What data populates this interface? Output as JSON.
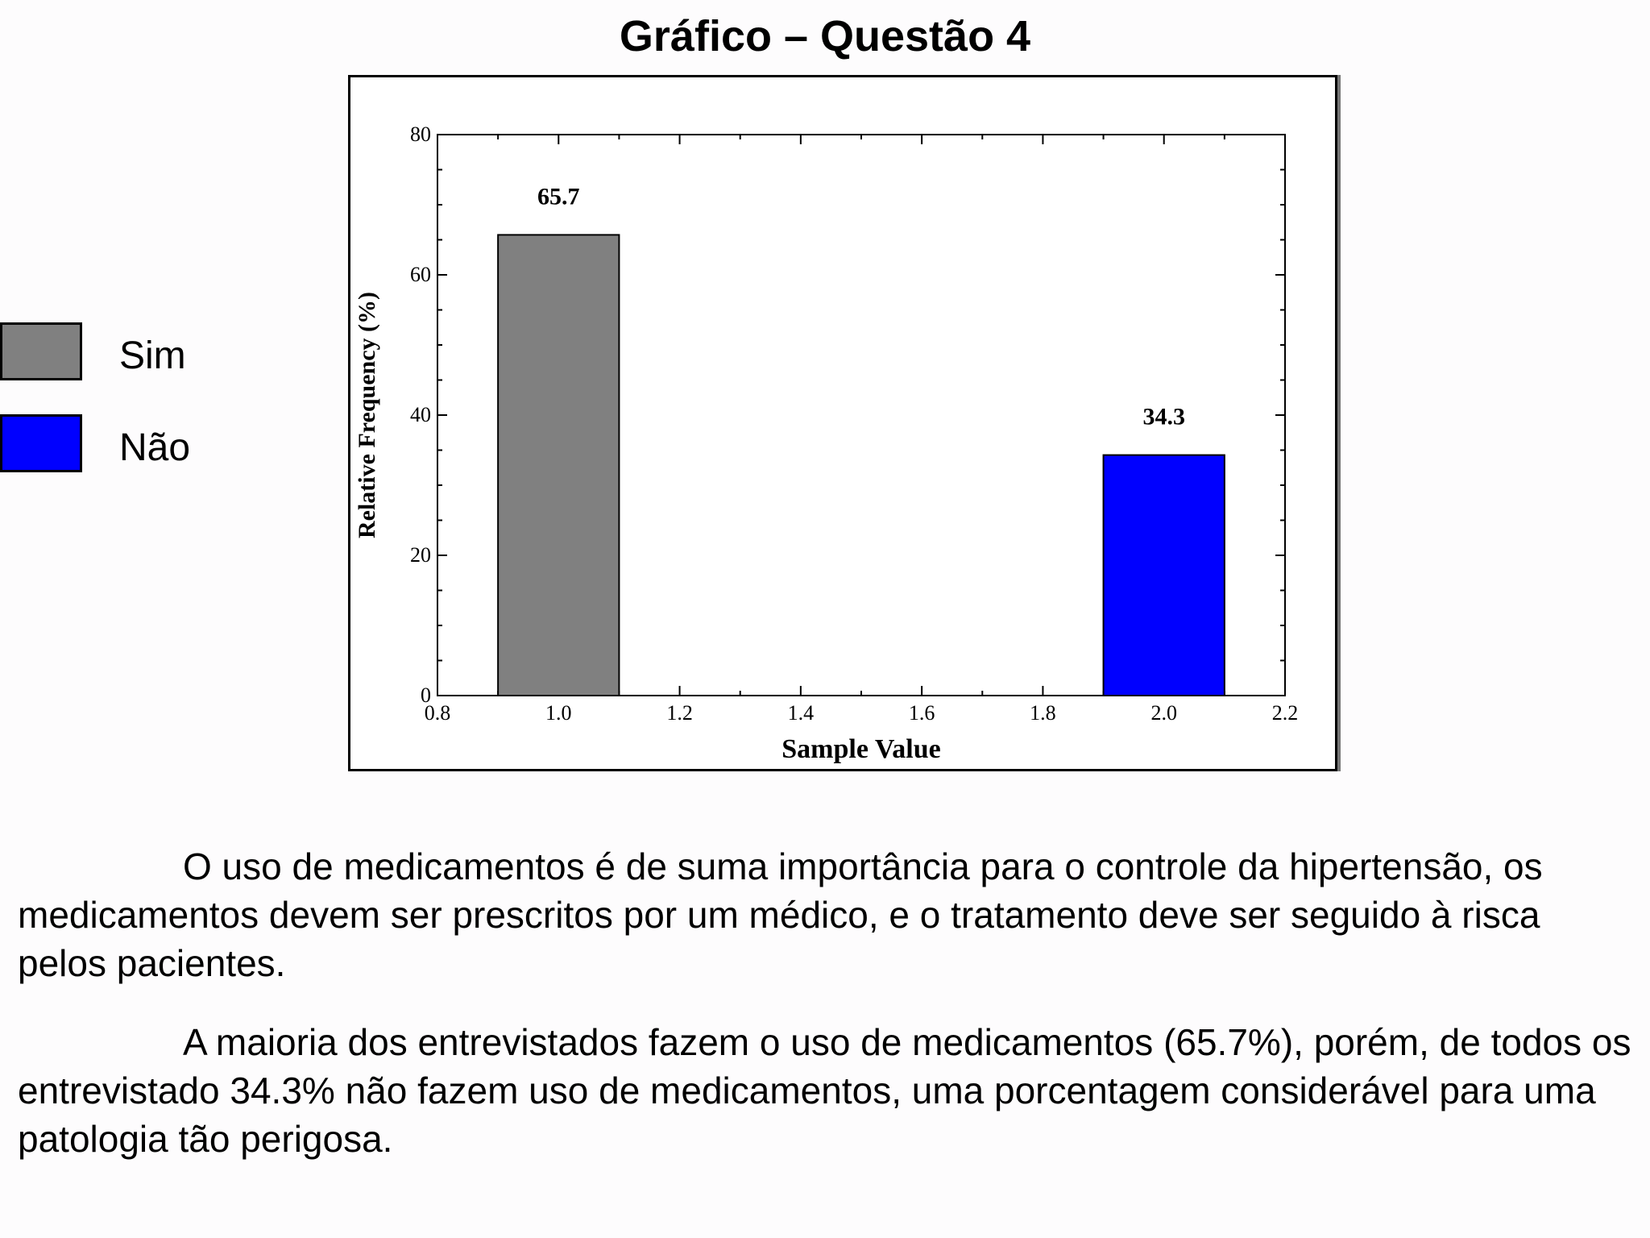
{
  "title": "Gráfico – Questão 4",
  "legend": [
    {
      "label": "Sim",
      "color": "#808080"
    },
    {
      "label": "Não",
      "color": "#0000ff"
    }
  ],
  "chart_data": {
    "type": "bar",
    "x": [
      1.0,
      2.0
    ],
    "values": [
      65.7,
      34.3
    ],
    "bar_width": 0.2,
    "colors": [
      "#808080",
      "#0000ff"
    ],
    "data_labels": [
      "65.7",
      "34.3"
    ],
    "xlabel": "Sample Value",
    "ylabel": "Relative Frequency (%)",
    "xlim": [
      0.8,
      2.2
    ],
    "ylim": [
      0,
      80
    ],
    "xticks": [
      "0.8",
      "1.0",
      "1.2",
      "1.4",
      "1.6",
      "1.8",
      "2.0",
      "2.2"
    ],
    "yticks": [
      "0",
      "20",
      "40",
      "60",
      "80"
    ],
    "grid": false
  },
  "paragraphs": [
    "O uso de medicamentos é de suma importância para o controle da hipertensão, os medicamentos devem ser prescritos por um médico, e o tratamento deve ser seguido à risca pelos pacientes.",
    "A maioria dos entrevistados fazem o uso de medicamentos (65.7%), porém, de todos os entrevistado 34.3% não fazem uso de medicamentos, uma porcentagem considerável para uma patologia tão perigosa."
  ]
}
